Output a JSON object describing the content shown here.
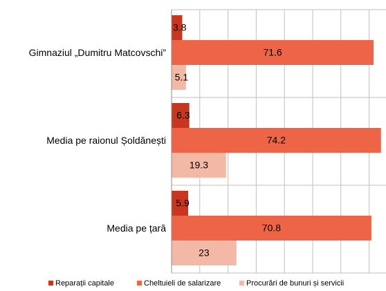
{
  "chart_data": {
    "type": "hbar",
    "categories": [
      "Gimnaziul „Dumitru Matcovschi”",
      "Media pe raionul Șoldănești",
      "Media pe țară"
    ],
    "series": [
      {
        "name": "Reparații capitale",
        "color": "#c9361f",
        "values": [
          3.8,
          6.3,
          5.9
        ]
      },
      {
        "name": "Cheltuieli de salarizare",
        "color": "#ed6447",
        "values": [
          71.6,
          74.2,
          70.8
        ]
      },
      {
        "name": "Procurări de bunuri și servicii",
        "color": "#f4b8a6",
        "values": [
          5.1,
          19.3,
          23
        ]
      }
    ],
    "xlim": [
      0,
      80
    ],
    "xticks": [
      0,
      10,
      20,
      30,
      40,
      50,
      60,
      70
    ],
    "grid": true,
    "legend": "bottom"
  }
}
